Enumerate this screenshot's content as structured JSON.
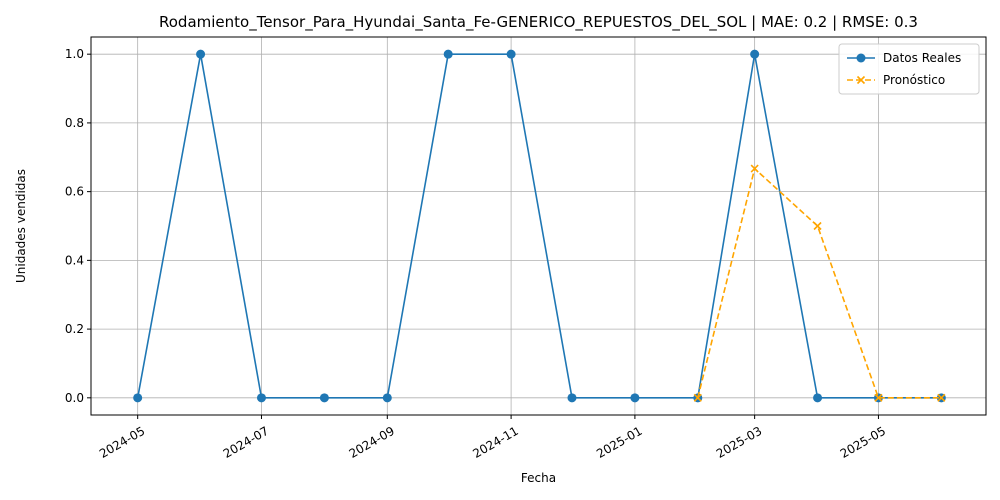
{
  "chart_data": {
    "type": "line",
    "title": "Rodamiento_Tensor_Para_Hyundai_Santa_Fe-GENERICO_REPUESTOS_DEL_SOL | MAE: 0.2 | RMSE: 0.3",
    "xlabel": "Fecha",
    "ylabel": "Unidades vendidas",
    "xlim": [
      "2024-04-08",
      "2025-06-23"
    ],
    "ylim": [
      -0.05,
      1.05
    ],
    "x_ticks": [
      "2024-05",
      "2024-07",
      "2024-09",
      "2024-11",
      "2025-01",
      "2025-03",
      "2025-05"
    ],
    "x_tick_dates": [
      "2024-05-01",
      "2024-07-01",
      "2024-09-01",
      "2024-11-01",
      "2025-01-01",
      "2025-03-01",
      "2025-05-01"
    ],
    "y_ticks": [
      "0.0",
      "0.2",
      "0.4",
      "0.6",
      "0.8",
      "1.0"
    ],
    "y_tick_values": [
      0,
      0.2,
      0.4,
      0.6,
      0.8,
      1.0
    ],
    "grid": true,
    "legend_position": "top-right",
    "series": [
      {
        "name": "Datos Reales",
        "color": "#1f77b4",
        "style": "solid",
        "marker": "circle",
        "x": [
          "2024-05-01",
          "2024-06-01",
          "2024-07-01",
          "2024-08-01",
          "2024-09-01",
          "2024-10-01",
          "2024-11-01",
          "2024-12-01",
          "2025-01-01",
          "2025-02-01",
          "2025-03-01",
          "2025-04-01",
          "2025-05-01",
          "2025-06-01"
        ],
        "values": [
          0,
          1,
          0,
          0,
          0,
          1,
          1,
          0,
          0,
          0,
          1,
          0,
          0,
          0
        ]
      },
      {
        "name": "Pronóstico",
        "color": "#ffa500",
        "style": "dashed",
        "marker": "x",
        "x": [
          "2025-02-01",
          "2025-03-01",
          "2025-04-01",
          "2025-05-01",
          "2025-06-01"
        ],
        "values": [
          0,
          0.667,
          0.5,
          0,
          0
        ]
      }
    ]
  }
}
